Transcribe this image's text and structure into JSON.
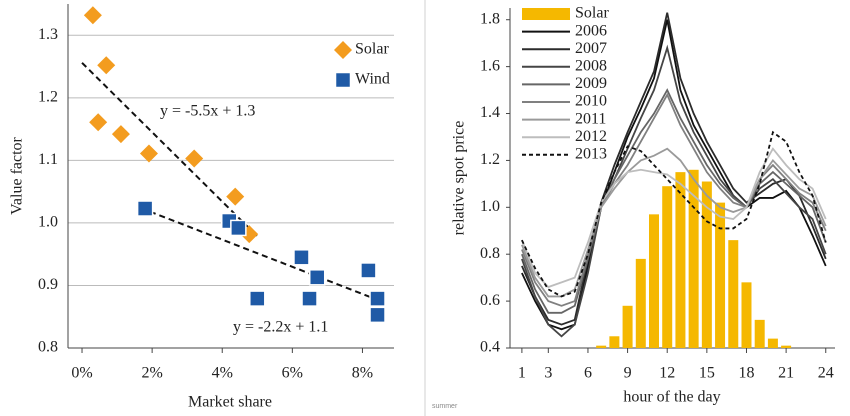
{
  "chart_data": [
    {
      "type": "scatter",
      "xlabel": "Market share",
      "ylabel": "Value factor",
      "xlim": [
        -0.4,
        8.9
      ],
      "ylim": [
        0.8,
        1.35
      ],
      "xticks": [
        {
          "value": 0,
          "label": "0%"
        },
        {
          "value": 2,
          "label": "2%"
        },
        {
          "value": 4,
          "label": "4%"
        },
        {
          "value": 6,
          "label": "6%"
        },
        {
          "value": 8,
          "label": "8%"
        }
      ],
      "yticks": [
        0.8,
        0.9,
        {
          "value": 1,
          "label": "1.0"
        },
        1.1,
        1.2,
        1.3
      ],
      "grid": true,
      "legend": "upper right",
      "series": [
        {
          "name": "Solar",
          "color": "#f39c1f",
          "marker": "diamond",
          "x": [
            0.31,
            0.69,
            0.46,
            1.11,
            1.91,
            3.2,
            4.37,
            4.77
          ],
          "values": [
            1.332,
            1.252,
            1.161,
            1.142,
            1.111,
            1.103,
            1.042,
            0.982
          ]
        },
        {
          "name": "Wind",
          "color": "#1f5aa6",
          "marker": "square",
          "x": [
            1.8,
            4.2,
            4.46,
            6.26,
            6.71,
            6.49,
            5.0,
            8.17,
            8.43,
            8.43
          ],
          "values": [
            1.023,
            1.003,
            0.992,
            0.945,
            0.913,
            0.879,
            0.879,
            0.924,
            0.879,
            0.853
          ]
        }
      ],
      "trendlines": [
        {
          "label": "y = -5.5x + 1.3",
          "x": [
            0,
            5.03
          ],
          "values": [
            1.256,
            0.977
          ]
        },
        {
          "label": "y = -2.2x + 1.1",
          "x": [
            1.94,
            8.57
          ],
          "values": [
            1.018,
            0.874
          ]
        }
      ]
    },
    {
      "type": "bar",
      "xlabel": "hour of the day",
      "ylabel": "relative spot price",
      "note": "summer",
      "x": [
        1,
        2,
        3,
        4,
        5,
        6,
        7,
        8,
        9,
        10,
        11,
        12,
        13,
        14,
        15,
        16,
        17,
        18,
        19,
        20,
        21,
        22,
        23,
        24
      ],
      "xlim": [
        0.1,
        24.7
      ],
      "ylim": [
        0.4,
        1.85
      ],
      "xticks": [
        1,
        3,
        6,
        9,
        12,
        15,
        18,
        21,
        24
      ],
      "yticks": [
        0.4,
        0.6,
        0.8,
        {
          "value": 1,
          "label": "1.0"
        },
        1.2,
        1.4,
        1.6,
        1.8
      ],
      "legend": "upper left",
      "series": [
        {
          "name": "Solar",
          "type": "bar",
          "color": "#f5b800",
          "values": [
            0.4,
            0.4,
            0.4,
            0.4,
            0.4,
            0.4,
            0.41,
            0.45,
            0.58,
            0.78,
            0.97,
            1.09,
            1.15,
            1.16,
            1.11,
            1.02,
            0.86,
            0.68,
            0.52,
            0.44,
            0.41,
            0.4,
            0.4,
            0.4
          ]
        },
        {
          "name": "2006",
          "type": "line",
          "color": "#111111",
          "values": [
            0.72,
            0.6,
            0.5,
            0.48,
            0.5,
            0.75,
            1.0,
            1.15,
            1.3,
            1.42,
            1.55,
            1.8,
            1.5,
            1.35,
            1.25,
            1.15,
            1.05,
            1.0,
            1.04,
            1.04,
            1.07,
            1.0,
            0.88,
            0.75
          ]
        },
        {
          "name": "2007",
          "type": "line",
          "color": "#2b2b2b",
          "values": [
            0.75,
            0.62,
            0.52,
            0.5,
            0.52,
            0.78,
            1.02,
            1.18,
            1.32,
            1.45,
            1.58,
            1.83,
            1.55,
            1.4,
            1.28,
            1.18,
            1.08,
            1.02,
            1.06,
            1.1,
            1.12,
            1.05,
            0.92,
            0.78
          ]
        },
        {
          "name": "2008",
          "type": "line",
          "color": "#454545",
          "values": [
            0.78,
            0.62,
            0.5,
            0.45,
            0.5,
            0.72,
            1.0,
            1.12,
            1.25,
            1.38,
            1.5,
            1.68,
            1.45,
            1.32,
            1.22,
            1.12,
            1.05,
            1.0,
            1.08,
            1.12,
            1.06,
            1.0,
            0.95,
            0.8
          ]
        },
        {
          "name": "2009",
          "type": "line",
          "color": "#666666",
          "values": [
            0.8,
            0.65,
            0.55,
            0.55,
            0.58,
            0.78,
            1.0,
            1.12,
            1.22,
            1.32,
            1.4,
            1.5,
            1.38,
            1.28,
            1.18,
            1.1,
            1.04,
            1.0,
            1.1,
            1.15,
            1.1,
            1.05,
            1.0,
            0.85
          ]
        },
        {
          "name": "2010",
          "type": "line",
          "color": "#808080",
          "values": [
            0.82,
            0.68,
            0.6,
            0.58,
            0.6,
            0.8,
            1.0,
            1.1,
            1.18,
            1.28,
            1.38,
            1.48,
            1.35,
            1.25,
            1.15,
            1.08,
            1.02,
            1.0,
            1.12,
            1.18,
            1.12,
            1.06,
            1.02,
            0.9
          ]
        },
        {
          "name": "2011",
          "type": "line",
          "color": "#9a9a9a",
          "values": [
            0.84,
            0.7,
            0.62,
            0.62,
            0.65,
            0.82,
            1.0,
            1.08,
            1.15,
            1.2,
            1.22,
            1.25,
            1.2,
            1.12,
            1.05,
            1.0,
            0.98,
            1.0,
            1.12,
            1.2,
            1.14,
            1.08,
            1.05,
            0.92
          ]
        },
        {
          "name": "2012",
          "type": "line",
          "color": "#bdbdbd",
          "values": [
            0.86,
            0.72,
            0.66,
            0.68,
            0.7,
            0.85,
            1.02,
            1.1,
            1.15,
            1.16,
            1.15,
            1.14,
            1.1,
            1.05,
            1.0,
            0.96,
            0.95,
            1.0,
            1.15,
            1.25,
            1.18,
            1.12,
            1.08,
            0.95
          ]
        },
        {
          "name": "2013",
          "type": "line",
          "color": "#111111",
          "dashed": true,
          "values": [
            0.86,
            0.74,
            0.65,
            0.62,
            0.64,
            0.8,
            1.02,
            1.15,
            1.26,
            1.24,
            1.18,
            1.12,
            1.06,
            1.0,
            0.94,
            0.91,
            0.91,
            0.95,
            1.1,
            1.32,
            1.28,
            1.15,
            1.05,
            0.85
          ]
        }
      ]
    }
  ]
}
